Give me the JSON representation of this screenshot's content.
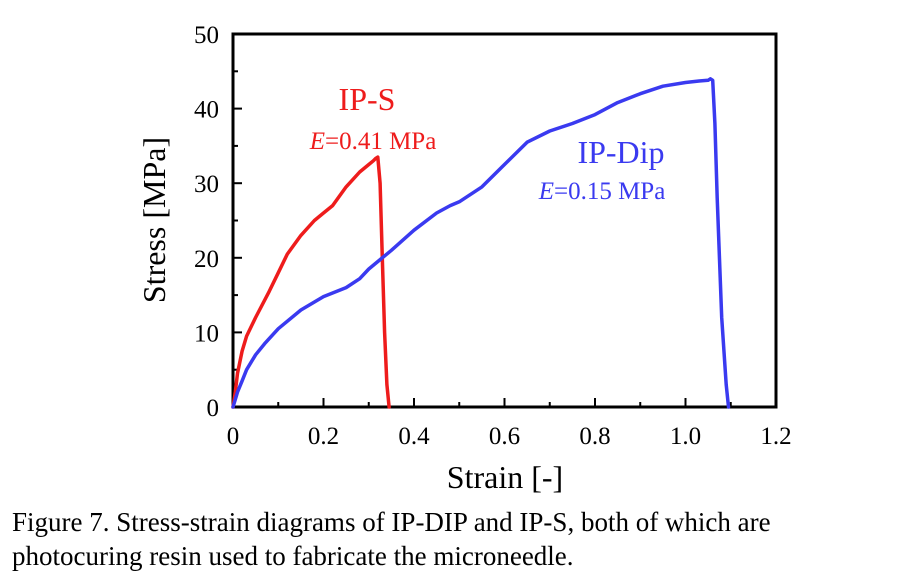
{
  "chart_data": {
    "type": "line",
    "xlabel": "Strain [-]",
    "ylabel": "Stress [MPa]",
    "xlim": [
      0,
      1.2
    ],
    "ylim": [
      0,
      50
    ],
    "xticks": [
      0,
      0.2,
      0.4,
      0.6,
      0.8,
      1.0,
      1.2
    ],
    "xtick_labels": [
      "0",
      "0.2",
      "0.4",
      "0.6",
      "0.8",
      "1.0",
      "1.2"
    ],
    "yticks": [
      0,
      10,
      20,
      30,
      40,
      50
    ],
    "ytick_labels": [
      "0",
      "10",
      "20",
      "30",
      "40",
      "50"
    ],
    "grid": false,
    "legend": "none",
    "series": [
      {
        "name": "IP-S",
        "color": "#ee1c1c",
        "x": [
          0,
          0.005,
          0.01,
          0.02,
          0.03,
          0.05,
          0.08,
          0.1,
          0.12,
          0.15,
          0.18,
          0.2,
          0.22,
          0.25,
          0.28,
          0.3,
          0.31,
          0.315,
          0.32,
          0.325,
          0.33,
          0.335,
          0.34,
          0.345
        ],
        "y": [
          0,
          2,
          4.5,
          7.5,
          9.5,
          12,
          15.5,
          18,
          20.5,
          23,
          25,
          26,
          27,
          29.5,
          31.5,
          32.5,
          33,
          33.3,
          33.5,
          30,
          20,
          10,
          3,
          0
        ]
      },
      {
        "name": "IP-Dip",
        "color": "#3a3af0",
        "x": [
          0,
          0.005,
          0.01,
          0.02,
          0.03,
          0.05,
          0.07,
          0.1,
          0.15,
          0.2,
          0.25,
          0.28,
          0.3,
          0.35,
          0.4,
          0.45,
          0.48,
          0.5,
          0.55,
          0.6,
          0.65,
          0.7,
          0.75,
          0.8,
          0.85,
          0.9,
          0.95,
          1.0,
          1.03,
          1.05,
          1.055,
          1.06,
          1.065,
          1.07,
          1.08,
          1.09,
          1.095
        ],
        "y": [
          0,
          1,
          2,
          3.5,
          5,
          7,
          8.5,
          10.5,
          13,
          14.8,
          16,
          17.2,
          18.5,
          21,
          23.7,
          26,
          27,
          27.5,
          29.5,
          32.5,
          35.5,
          37,
          38,
          39.2,
          40.8,
          42,
          43,
          43.5,
          43.7,
          43.8,
          44,
          43.8,
          38,
          28,
          12,
          3,
          0
        ]
      }
    ],
    "annotations": [
      {
        "series": "IP-S",
        "name_label": "IP-S",
        "modulus_symbol": "E",
        "modulus_text": "=0.41 MPa"
      },
      {
        "series": "IP-Dip",
        "name_label": "IP-Dip",
        "modulus_symbol": "E",
        "modulus_text": "=0.15 MPa"
      }
    ]
  },
  "caption": {
    "line1": "Figure 7. Stress-strain diagrams of IP-DIP and IP-S, both of which are",
    "line2": "photocuring resin used to fabricate the microneedle."
  }
}
